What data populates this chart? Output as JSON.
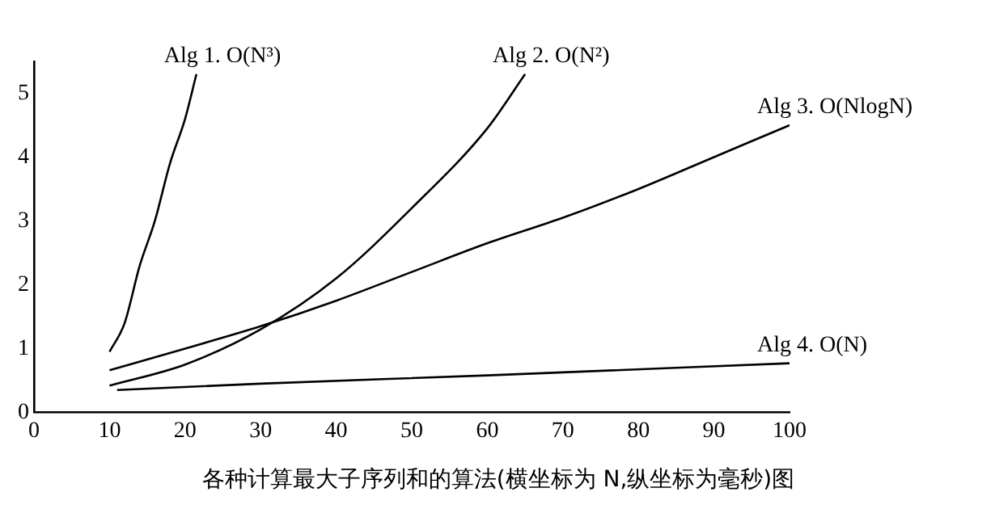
{
  "chart_data": {
    "type": "line",
    "series": [
      {
        "name": "Alg 1. O(N³)",
        "color": "#000000",
        "x": [
          10,
          12,
          14,
          16,
          18,
          20,
          21.5
        ],
        "values": [
          0.95,
          1.4,
          2.3,
          3.0,
          3.9,
          4.6,
          5.3
        ]
      },
      {
        "name": "Alg 2. O(N²)",
        "color": "#000000",
        "x": [
          10,
          20,
          30,
          40,
          50,
          60,
          65
        ],
        "values": [
          0.42,
          0.75,
          1.3,
          2.1,
          3.2,
          4.45,
          5.3
        ]
      },
      {
        "name": "Alg 3. O(NlogN)",
        "color": "#000000",
        "x": [
          10,
          20,
          30,
          40,
          50,
          60,
          70,
          80,
          90,
          100
        ],
        "values": [
          0.66,
          1.0,
          1.35,
          1.75,
          2.2,
          2.65,
          3.05,
          3.5,
          4.0,
          4.5
        ]
      },
      {
        "name": "Alg 4. O(N)",
        "color": "#000000",
        "x": [
          11,
          30,
          60,
          100
        ],
        "values": [
          0.35,
          0.45,
          0.58,
          0.77
        ]
      }
    ],
    "xlim": [
      0,
      100
    ],
    "xticks": [
      0,
      10,
      20,
      30,
      40,
      50,
      60,
      70,
      80,
      90,
      100
    ],
    "ylim": [
      0,
      5.5
    ],
    "yticks": [
      0,
      1,
      2,
      3,
      4,
      5
    ],
    "grid": false,
    "legend": false,
    "marker": "none",
    "line_style": "solid",
    "annotations": [
      "各种计算最大子序列和的算法(横坐标为 N,纵坐标为毫秒)图"
    ]
  }
}
